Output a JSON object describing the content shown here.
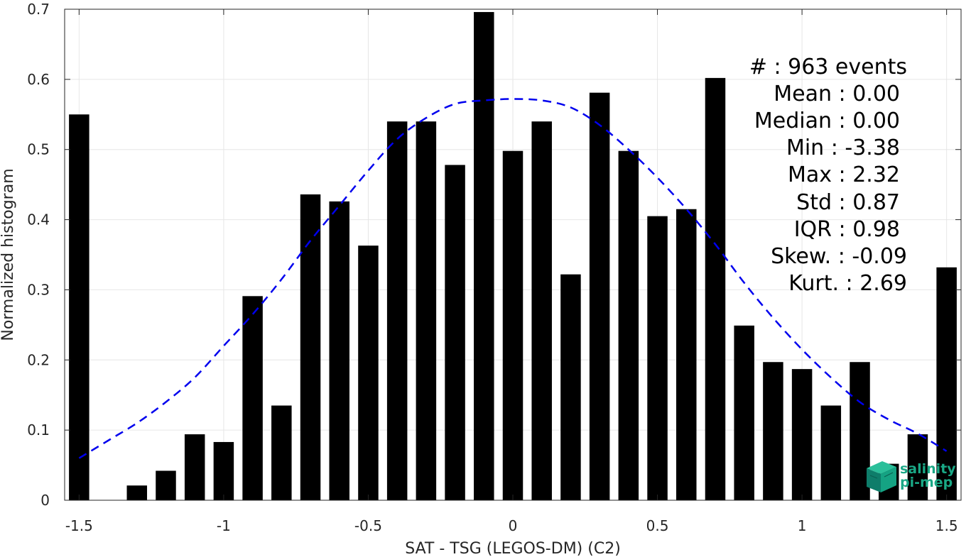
{
  "chart_data": {
    "type": "bar",
    "xlabel": "SAT - TSG (LEGOS-DM) (C2)",
    "ylabel": "Normalized histogram",
    "xlim": [
      -1.55,
      1.55
    ],
    "ylim": [
      0,
      0.7
    ],
    "xticks": [
      -1.5,
      -1,
      -0.5,
      0,
      0.5,
      1,
      1.5
    ],
    "xtick_labels": [
      "-1.5",
      "-1",
      "-0.5",
      "0",
      "0.5",
      "1",
      "1.5"
    ],
    "yticks": [
      0,
      0.1,
      0.2,
      0.3,
      0.4,
      0.5,
      0.6,
      0.7
    ],
    "ytick_labels": [
      "0",
      "0.1",
      "0.2",
      "0.3",
      "0.4",
      "0.5",
      "0.6",
      "0.7"
    ],
    "grid": true,
    "bar_color": "#000000",
    "bin_width": 0.1,
    "x": [
      -1.5,
      -1.4,
      -1.3,
      -1.2,
      -1.1,
      -1.0,
      -0.9,
      -0.8,
      -0.7,
      -0.6,
      -0.5,
      -0.4,
      -0.3,
      -0.2,
      -0.1,
      0.0,
      0.1,
      0.2,
      0.3,
      0.4,
      0.5,
      0.6,
      0.7,
      0.8,
      0.9,
      1.0,
      1.1,
      1.2,
      1.3,
      1.4,
      1.5
    ],
    "values": [
      0.55,
      0.0,
      0.021,
      0.042,
      0.094,
      0.083,
      0.291,
      0.135,
      0.436,
      0.426,
      0.363,
      0.54,
      0.54,
      0.478,
      0.696,
      0.498,
      0.54,
      0.322,
      0.581,
      0.498,
      0.405,
      0.415,
      0.602,
      0.249,
      0.197,
      0.187,
      0.135,
      0.197,
      0.052,
      0.094,
      0.332
    ],
    "fit_curve": {
      "type": "gaussian",
      "color": "#0000ee",
      "style": "dashed",
      "x_range": [
        -1.5,
        1.5
      ],
      "x": [
        -1.5,
        -1.4,
        -1.3,
        -1.2,
        -1.1,
        -1.0,
        -0.9,
        -0.8,
        -0.7,
        -0.6,
        -0.5,
        -0.4,
        -0.3,
        -0.2,
        -0.1,
        0.0,
        0.1,
        0.2,
        0.3,
        0.4,
        0.5,
        0.6,
        0.7,
        0.8,
        0.9,
        1.0,
        1.1,
        1.2,
        1.3,
        1.4,
        1.5
      ],
      "y": [
        0.06,
        0.085,
        0.11,
        0.14,
        0.175,
        0.22,
        0.265,
        0.315,
        0.37,
        0.42,
        0.47,
        0.515,
        0.545,
        0.565,
        0.57,
        0.572,
        0.57,
        0.56,
        0.535,
        0.5,
        0.46,
        0.415,
        0.365,
        0.31,
        0.26,
        0.215,
        0.175,
        0.14,
        0.115,
        0.095,
        0.07
      ]
    }
  },
  "stats": {
    "events": "#  : 963 events",
    "mean": "Mean : 0.00",
    "median": "Median : 0.00",
    "min": "Min : -3.38",
    "max": "Max : 2.32",
    "std": "Std : 0.87",
    "iqr": "IQR : 0.98",
    "skew": "Skew. : -0.09",
    "kurt": "Kurt. : 2.69"
  },
  "logo": {
    "line1": "salinity",
    "line2": "pi-mep",
    "color": "#1aa886"
  }
}
